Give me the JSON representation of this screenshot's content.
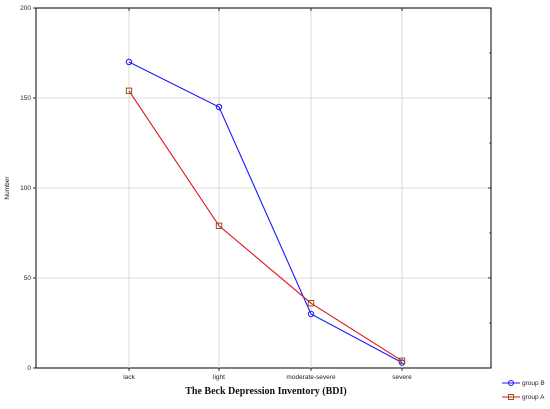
{
  "chart_data": {
    "type": "line",
    "title": "",
    "xlabel": "The Beck Depression Inventory (BDI)",
    "ylabel": "Number",
    "categories": [
      "lack",
      "light",
      "moderate-severe",
      "severe"
    ],
    "ylim": [
      0,
      200
    ],
    "yticks": [
      0,
      50,
      100,
      150,
      200
    ],
    "grid": true,
    "legend_position": "bottom-right",
    "series": [
      {
        "name": "group B",
        "values": [
          170,
          145,
          30,
          3
        ],
        "color": "#1a1aff",
        "marker": "circle"
      },
      {
        "name": "group A",
        "values": [
          154,
          79,
          36,
          4
        ],
        "color": "#e0141e",
        "marker": "square",
        "marker_color": "#8a5a1a"
      }
    ]
  }
}
